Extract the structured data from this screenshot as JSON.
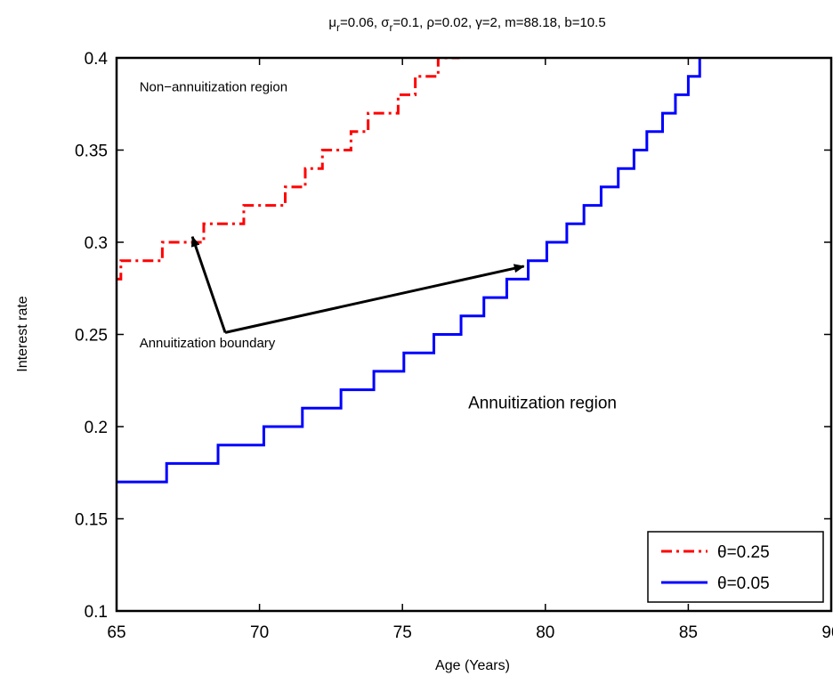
{
  "chart_data": {
    "type": "line",
    "title_parts": {
      "mu": "μ",
      "mu_sub": "r",
      "mu_val": "=0.06, ",
      "sigma": "σ",
      "sigma_sub": "r",
      "sigma_val": "=0.1, ρ=0.02, γ=2, m=88.18, b=10.5"
    },
    "xlabel": "Age (Years)",
    "ylabel": "Interest rate",
    "xlim": [
      65,
      90
    ],
    "ylim": [
      0.1,
      0.4
    ],
    "xticks": [
      "65",
      "70",
      "75",
      "80",
      "85",
      "90"
    ],
    "yticks": [
      "0.1",
      "0.15",
      "0.2",
      "0.25",
      "0.3",
      "0.35",
      "0.4"
    ],
    "grid": false,
    "legend_position": "bottom-right",
    "series": [
      {
        "name": "θ=0.25",
        "color": "#ff0000",
        "style": "dashdot",
        "steps": [
          [
            65.0,
            0.28
          ],
          [
            65.15,
            0.29
          ],
          [
            66.6,
            0.3
          ],
          [
            68.05,
            0.31
          ],
          [
            69.45,
            0.32
          ],
          [
            70.9,
            0.33
          ],
          [
            71.6,
            0.34
          ],
          [
            72.2,
            0.35
          ],
          [
            73.2,
            0.36
          ],
          [
            73.8,
            0.37
          ],
          [
            74.85,
            0.38
          ],
          [
            75.45,
            0.39
          ],
          [
            76.25,
            0.4
          ],
          [
            77.0,
            0.4
          ]
        ]
      },
      {
        "name": "θ=0.05",
        "color": "#0000ff",
        "style": "solid",
        "steps": [
          [
            65.0,
            0.17
          ],
          [
            66.75,
            0.18
          ],
          [
            68.55,
            0.19
          ],
          [
            70.15,
            0.2
          ],
          [
            71.5,
            0.21
          ],
          [
            72.85,
            0.22
          ],
          [
            74.0,
            0.23
          ],
          [
            75.05,
            0.24
          ],
          [
            76.1,
            0.25
          ],
          [
            77.05,
            0.26
          ],
          [
            77.85,
            0.27
          ],
          [
            78.65,
            0.28
          ],
          [
            79.4,
            0.29
          ],
          [
            80.05,
            0.3
          ],
          [
            80.75,
            0.31
          ],
          [
            81.35,
            0.32
          ],
          [
            81.95,
            0.33
          ],
          [
            82.55,
            0.34
          ],
          [
            83.1,
            0.35
          ],
          [
            83.55,
            0.36
          ],
          [
            84.1,
            0.37
          ],
          [
            84.55,
            0.38
          ],
          [
            85.0,
            0.39
          ],
          [
            85.4,
            0.4
          ]
        ]
      }
    ],
    "annotations": [
      {
        "text": "Non−annuitization region",
        "x": 65.8,
        "y": 0.382,
        "size": "small"
      },
      {
        "text": "Annuitization boundary",
        "x": 65.8,
        "y": 0.243,
        "size": "small"
      },
      {
        "text": "Annuitization region",
        "x": 77.3,
        "y": 0.21,
        "size": "large"
      }
    ],
    "arrows": [
      {
        "from": [
          68.8,
          0.251
        ],
        "to": [
          67.65,
          0.303
        ]
      },
      {
        "from": [
          68.8,
          0.251
        ],
        "to": [
          79.25,
          0.287
        ]
      }
    ]
  }
}
